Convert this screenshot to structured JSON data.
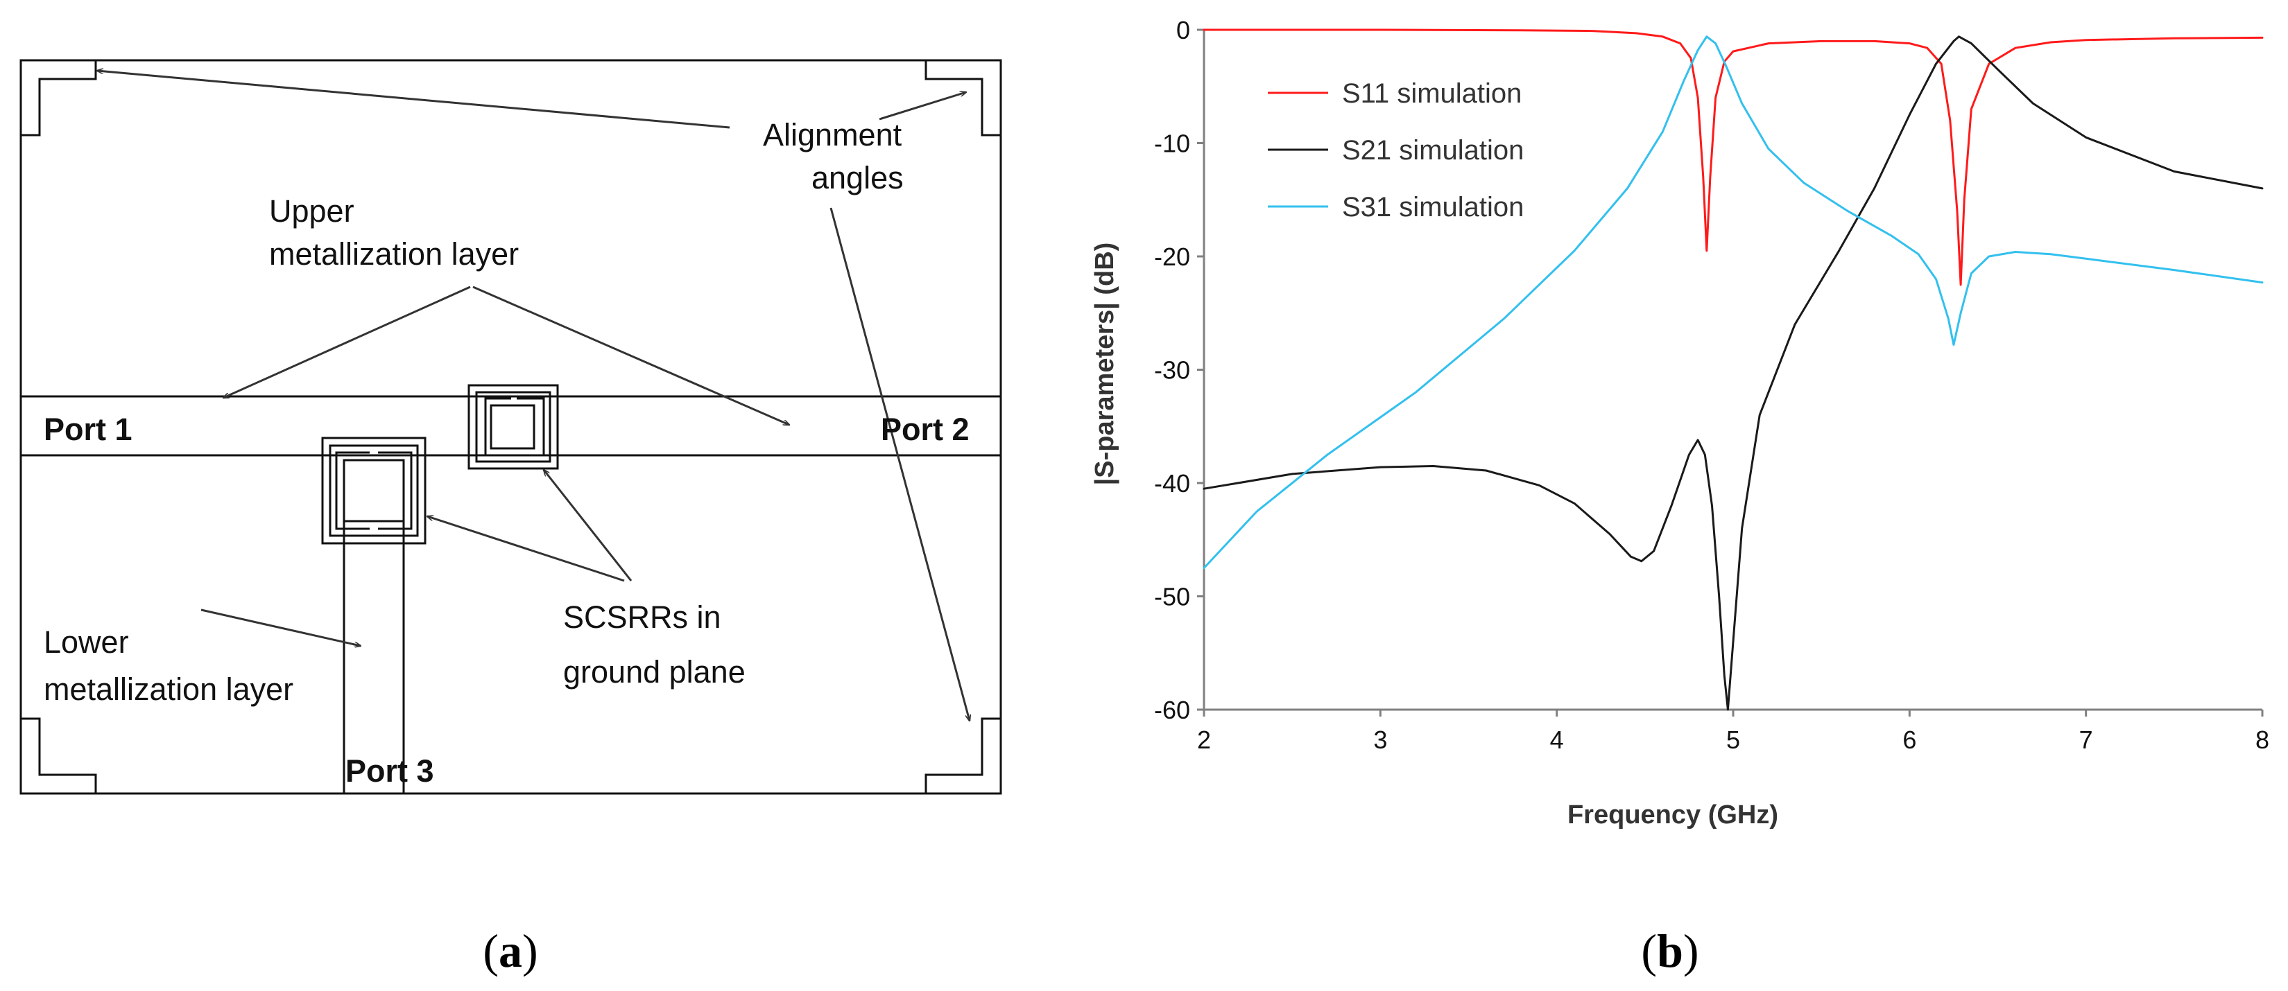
{
  "panel_a": {
    "caption_open": "(",
    "caption_letter": "a",
    "caption_close": ")",
    "labels": {
      "alignment_line1": "Alignment",
      "alignment_line2": "angles",
      "upper_line1": "Upper",
      "upper_line2": "metallization  layer",
      "port1": "Port 1",
      "port2": "Port 2",
      "port3": "Port 3",
      "lower_line1": "Lower",
      "lower_line2": "metallization  layer",
      "scsrr_line1": "SCSRRs in",
      "scsrr_line2": "ground plane"
    }
  },
  "panel_b": {
    "caption_open": "(",
    "caption_letter": "b",
    "caption_close": ")"
  },
  "colors": {
    "s11": "#ff1a1a",
    "s21": "#1a1a1a",
    "s31": "#33c0ee",
    "axis": "#808080",
    "line": "#333333"
  },
  "chart_data": {
    "type": "line",
    "title": "",
    "xlabel": "Frequency (GHz)",
    "ylabel": "|S-parameters| (dB)",
    "xlim": [
      2,
      8
    ],
    "ylim": [
      -60,
      0
    ],
    "xticks": [
      "2",
      "3",
      "4",
      "5",
      "6",
      "7",
      "8"
    ],
    "yticks": [
      "0",
      "-10",
      "-20",
      "-30",
      "-40",
      "-50",
      "-60"
    ],
    "grid": false,
    "legend_position": "top-left",
    "series": [
      {
        "name": "S11 simulation",
        "color": "#ff1a1a",
        "points": [
          [
            2,
            0
          ],
          [
            3,
            0
          ],
          [
            3.8,
            -0.05
          ],
          [
            4.2,
            -0.1
          ],
          [
            4.45,
            -0.3
          ],
          [
            4.6,
            -0.6
          ],
          [
            4.7,
            -1.2
          ],
          [
            4.76,
            -2.5
          ],
          [
            4.8,
            -6
          ],
          [
            4.83,
            -13
          ],
          [
            4.85,
            -19.5
          ],
          [
            4.87,
            -13
          ],
          [
            4.9,
            -6
          ],
          [
            4.95,
            -2.8
          ],
          [
            5,
            -1.9
          ],
          [
            5.2,
            -1.2
          ],
          [
            5.5,
            -1
          ],
          [
            5.8,
            -1
          ],
          [
            6,
            -1.2
          ],
          [
            6.1,
            -1.6
          ],
          [
            6.18,
            -3
          ],
          [
            6.23,
            -8
          ],
          [
            6.27,
            -16
          ],
          [
            6.29,
            -22.5
          ],
          [
            6.31,
            -15
          ],
          [
            6.35,
            -7
          ],
          [
            6.45,
            -3
          ],
          [
            6.6,
            -1.6
          ],
          [
            6.8,
            -1.1
          ],
          [
            7,
            -0.9
          ],
          [
            7.5,
            -0.75
          ],
          [
            8,
            -0.7
          ]
        ]
      },
      {
        "name": "S21 simulation",
        "color": "#1a1a1a",
        "points": [
          [
            2,
            -40.5
          ],
          [
            2.5,
            -39.2
          ],
          [
            3,
            -38.6
          ],
          [
            3.3,
            -38.5
          ],
          [
            3.6,
            -38.9
          ],
          [
            3.9,
            -40.2
          ],
          [
            4.1,
            -41.8
          ],
          [
            4.3,
            -44.5
          ],
          [
            4.42,
            -46.5
          ],
          [
            4.48,
            -46.9
          ],
          [
            4.55,
            -46
          ],
          [
            4.65,
            -42
          ],
          [
            4.75,
            -37.5
          ],
          [
            4.8,
            -36.2
          ],
          [
            4.84,
            -37.5
          ],
          [
            4.88,
            -42
          ],
          [
            4.92,
            -50
          ],
          [
            4.95,
            -57
          ],
          [
            4.97,
            -60
          ],
          [
            5,
            -54
          ],
          [
            5.05,
            -44
          ],
          [
            5.15,
            -34
          ],
          [
            5.35,
            -26
          ],
          [
            5.6,
            -19.5
          ],
          [
            5.8,
            -14
          ],
          [
            6,
            -7.5
          ],
          [
            6.15,
            -3
          ],
          [
            6.25,
            -1
          ],
          [
            6.28,
            -0.6
          ],
          [
            6.35,
            -1.2
          ],
          [
            6.5,
            -3.5
          ],
          [
            6.7,
            -6.5
          ],
          [
            7,
            -9.5
          ],
          [
            7.5,
            -12.5
          ],
          [
            8,
            -14
          ]
        ]
      },
      {
        "name": "S31 simulation",
        "color": "#33c0ee",
        "points": [
          [
            2,
            -47.5
          ],
          [
            2.3,
            -42.5
          ],
          [
            2.7,
            -37.5
          ],
          [
            3.2,
            -32
          ],
          [
            3.7,
            -25.5
          ],
          [
            4.1,
            -19.5
          ],
          [
            4.4,
            -14
          ],
          [
            4.6,
            -9
          ],
          [
            4.72,
            -4.5
          ],
          [
            4.8,
            -1.8
          ],
          [
            4.85,
            -0.6
          ],
          [
            4.9,
            -1.2
          ],
          [
            4.96,
            -3.2
          ],
          [
            5.05,
            -6.5
          ],
          [
            5.2,
            -10.5
          ],
          [
            5.4,
            -13.5
          ],
          [
            5.65,
            -16
          ],
          [
            5.9,
            -18.2
          ],
          [
            6.05,
            -19.8
          ],
          [
            6.15,
            -22
          ],
          [
            6.22,
            -25.5
          ],
          [
            6.25,
            -27.8
          ],
          [
            6.29,
            -25
          ],
          [
            6.35,
            -21.5
          ],
          [
            6.45,
            -20
          ],
          [
            6.6,
            -19.6
          ],
          [
            6.8,
            -19.8
          ],
          [
            7,
            -20.2
          ],
          [
            7.5,
            -21.2
          ],
          [
            8,
            -22.3
          ]
        ]
      }
    ]
  }
}
